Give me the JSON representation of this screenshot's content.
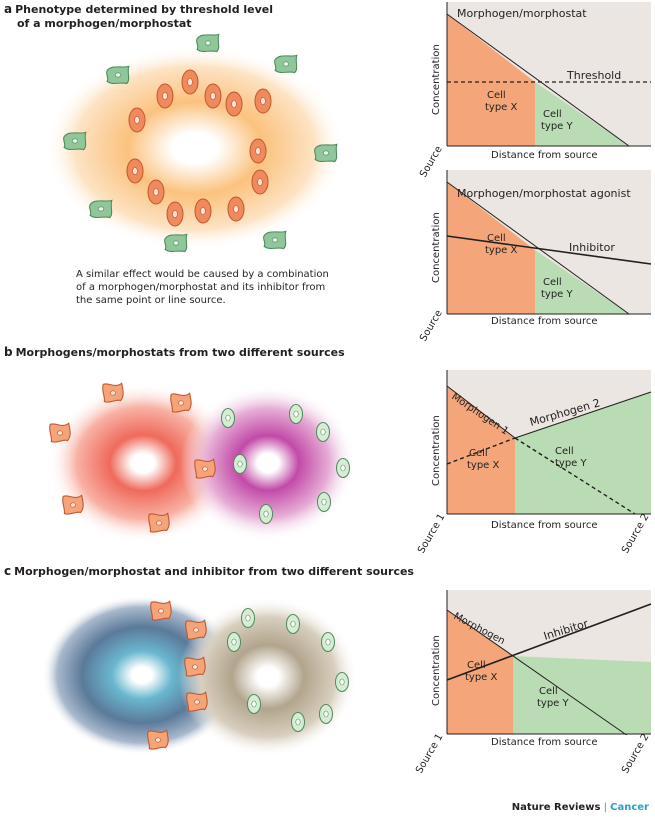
{
  "panel_a": {
    "letter": "a",
    "title_line1": "Phenotype determined by threshold level",
    "title_line2": "of a morphogen/morphostat",
    "note_lines": [
      "A similar effect would be caused by a combination",
      "of a morphogen/morphostat and its inhibitor from",
      "the same point or line source."
    ],
    "graph1": {
      "ylabel": "Concentration",
      "xlabel": "Distance from source",
      "source_label": "Source",
      "curve_label": "Morphogen/morphostat",
      "threshold_label": "Threshold",
      "cell_x": [
        "Cell",
        "type X"
      ],
      "cell_y": [
        "Cell",
        "type Y"
      ]
    },
    "graph2": {
      "ylabel": "Concentration",
      "xlabel": "Distance from source",
      "source_label": "Source",
      "curve_label": "Morphogen/morphostat agonist",
      "inhibitor_label": "Inhibitor",
      "cell_x": [
        "Cell",
        "type X"
      ],
      "cell_y": [
        "Cell",
        "type Y"
      ]
    }
  },
  "panel_b": {
    "letter": "b",
    "title": "Morphogens/morphostats from two different sources",
    "graph": {
      "ylabel": "Concentration",
      "xlabel": "Distance from source",
      "source1_label": "Source 1",
      "source2_label": "Source 2",
      "morphogen1_label": "Morphogen 1",
      "morphogen2_label": "Morphogen 2",
      "cell_x": [
        "Cell",
        "type X"
      ],
      "cell_y": [
        "Cell",
        "type Y"
      ]
    }
  },
  "panel_c": {
    "letter": "c",
    "title": "Morphogen/morphostat and inhibitor from two different sources",
    "graph": {
      "ylabel": "Concentration",
      "xlabel": "Distance from source",
      "source1_label": "Source 1",
      "source2_label": "Source 2",
      "morphogen_label": "Morphogen",
      "inhibitor_label": "Inhibitor",
      "cell_x": [
        "Cell",
        "type X"
      ],
      "cell_y": [
        "Cell",
        "type Y"
      ]
    }
  },
  "footer": {
    "brand1": "Nature Reviews",
    "separator": " | ",
    "brand2": "Cancer"
  },
  "colors": {
    "orange_region": "#f4a67a",
    "green_region": "#b9dcb4",
    "grey_region": "#ece6e2",
    "cell_orange": "#f08a5c",
    "cell_green": "#8fc79a"
  }
}
